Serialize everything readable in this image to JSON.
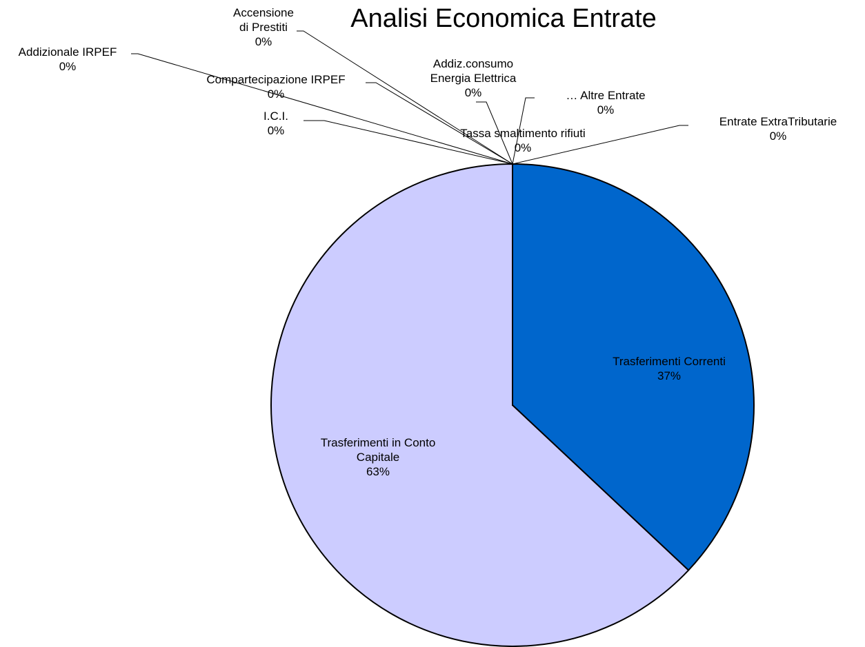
{
  "chart_data": {
    "type": "pie",
    "title": "Analisi Economica Entrate",
    "categories": [
      "Trasferimenti Correnti",
      "Trasferimenti in Conto\nCapitale",
      "I.C.I.",
      "Compartecipazione IRPEF",
      "Addizionale IRPEF",
      "Accensione\ndi Prestiti",
      "Addiz.consumo\nEnergia Elettrica",
      "Tassa smaltimento rifiuti",
      "… Altre Entrate",
      "Entrate ExtraTributarie"
    ],
    "values": [
      37,
      63,
      0,
      0,
      0,
      0,
      0,
      0,
      0,
      0
    ],
    "value_labels": [
      "37%",
      "63%",
      "0%",
      "0%",
      "0%",
      "0%",
      "0%",
      "0%",
      "0%",
      "0%"
    ],
    "colors": [
      "#0066cc",
      "#ccccff",
      "#993366",
      "#ffffcc",
      "#ccffff",
      "#660066",
      "#ff8080",
      "#0066cc",
      "#ccccff",
      "#000080"
    ]
  }
}
